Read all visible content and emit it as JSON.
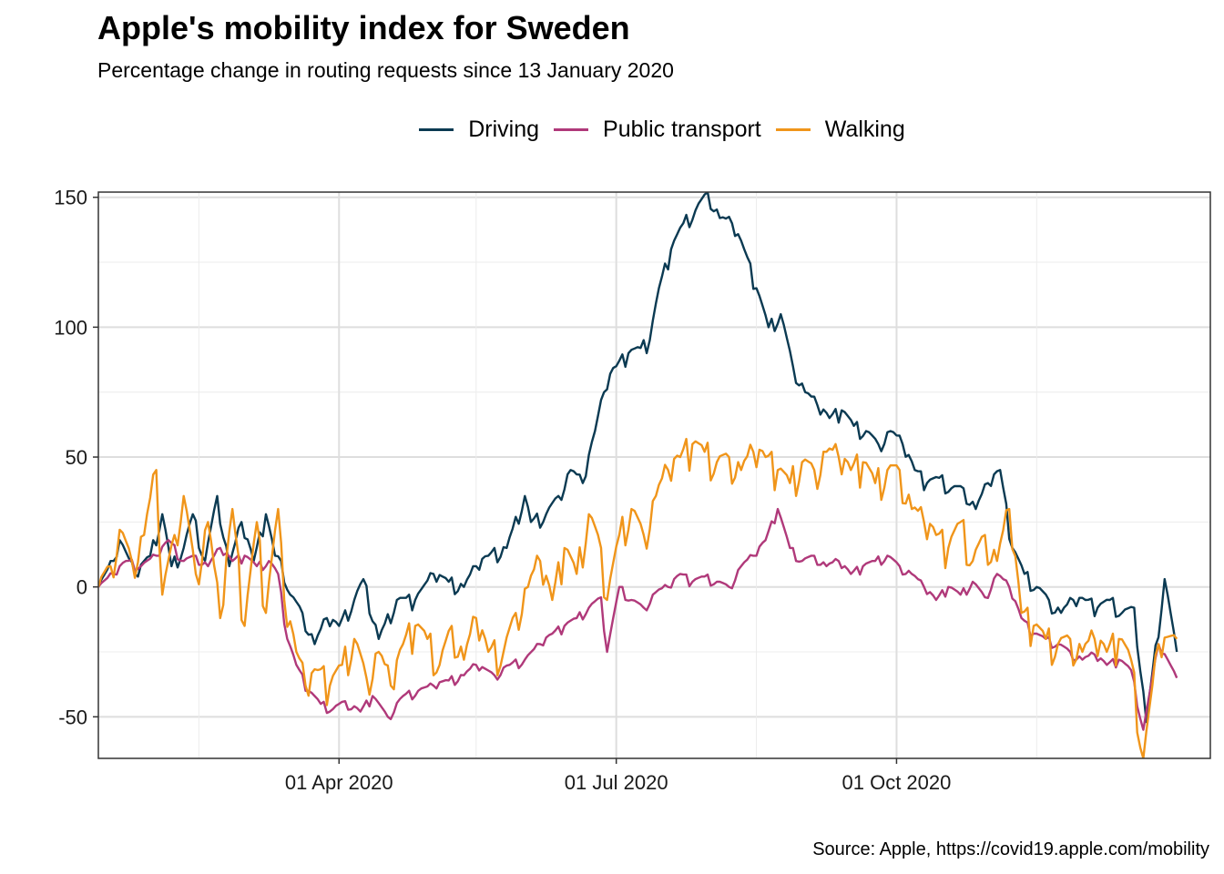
{
  "title": "Apple's mobility index for Sweden",
  "subtitle": "Percentage change in routing requests since 13 January 2020",
  "caption": "Source: Apple, https://covid19.apple.com/mobility",
  "chart_data": {
    "type": "line",
    "x_label_ticks": [
      "01 Apr 2020",
      "01 Jul 2020",
      "01 Oct 2020"
    ],
    "y_ticks": [
      -50,
      0,
      50,
      100,
      150
    ],
    "xlim": [
      "2020-01-13",
      "2021-01-12"
    ],
    "ylim": [
      -66,
      152
    ],
    "grid": true,
    "legend_position": "top",
    "series": [
      {
        "name": "Driving",
        "color": "#0b3a52",
        "points": [
          [
            "2020-01-13",
            0
          ],
          [
            "2020-01-18",
            10
          ],
          [
            "2020-01-20",
            18
          ],
          [
            "2020-01-25",
            5
          ],
          [
            "2020-01-30",
            12
          ],
          [
            "2020-02-03",
            28
          ],
          [
            "2020-02-06",
            8
          ],
          [
            "2020-02-10",
            15
          ],
          [
            "2020-02-13",
            28
          ],
          [
            "2020-02-17",
            10
          ],
          [
            "2020-02-21",
            35
          ],
          [
            "2020-02-25",
            8
          ],
          [
            "2020-02-29",
            25
          ],
          [
            "2020-03-04",
            10
          ],
          [
            "2020-03-08",
            28
          ],
          [
            "2020-03-11",
            12
          ],
          [
            "2020-03-13",
            10
          ],
          [
            "2020-03-16",
            -3
          ],
          [
            "2020-03-20",
            -10
          ],
          [
            "2020-03-24",
            -22
          ],
          [
            "2020-03-28",
            -12
          ],
          [
            "2020-04-01",
            -15
          ],
          [
            "2020-04-06",
            -5
          ],
          [
            "2020-04-09",
            3
          ],
          [
            "2020-04-14",
            -20
          ],
          [
            "2020-04-20",
            -5
          ],
          [
            "2020-04-26",
            -5
          ],
          [
            "2020-05-02",
            5
          ],
          [
            "2020-05-07",
            2
          ],
          [
            "2020-05-12",
            0
          ],
          [
            "2020-05-16",
            8
          ],
          [
            "2020-05-20",
            12
          ],
          [
            "2020-05-26",
            15
          ],
          [
            "2020-06-01",
            35
          ],
          [
            "2020-06-03",
            25
          ],
          [
            "2020-06-08",
            28
          ],
          [
            "2020-06-12",
            35
          ],
          [
            "2020-06-16",
            45
          ],
          [
            "2020-06-20",
            40
          ],
          [
            "2020-06-24",
            60
          ],
          [
            "2020-06-27",
            75
          ],
          [
            "2020-06-29",
            82
          ],
          [
            "2020-07-01",
            85
          ],
          [
            "2020-07-05",
            90
          ],
          [
            "2020-07-09",
            92
          ],
          [
            "2020-07-12",
            95
          ],
          [
            "2020-07-15",
            115
          ],
          [
            "2020-07-19",
            130
          ],
          [
            "2020-07-23",
            140
          ],
          [
            "2020-07-27",
            145
          ],
          [
            "2020-07-31",
            152
          ],
          [
            "2020-08-04",
            142
          ],
          [
            "2020-08-08",
            140
          ],
          [
            "2020-08-12",
            130
          ],
          [
            "2020-08-16",
            115
          ],
          [
            "2020-08-20",
            100
          ],
          [
            "2020-08-24",
            105
          ],
          [
            "2020-08-28",
            85
          ],
          [
            "2020-09-01",
            75
          ],
          [
            "2020-09-05",
            70
          ],
          [
            "2020-09-09",
            65
          ],
          [
            "2020-09-13",
            68
          ],
          [
            "2020-09-17",
            62
          ],
          [
            "2020-09-21",
            60
          ],
          [
            "2020-09-25",
            55
          ],
          [
            "2020-09-29",
            60
          ],
          [
            "2020-10-03",
            55
          ],
          [
            "2020-10-07",
            45
          ],
          [
            "2020-10-11",
            40
          ],
          [
            "2020-10-15",
            42
          ],
          [
            "2020-10-19",
            38
          ],
          [
            "2020-10-23",
            38
          ],
          [
            "2020-10-27",
            30
          ],
          [
            "2020-10-31",
            40
          ],
          [
            "2020-11-04",
            45
          ],
          [
            "2020-11-08",
            15
          ],
          [
            "2020-11-12",
            5
          ],
          [
            "2020-11-16",
            0
          ],
          [
            "2020-11-20",
            -5
          ],
          [
            "2020-11-24",
            -10
          ],
          [
            "2020-11-28",
            -5
          ],
          [
            "2020-12-02",
            -5
          ],
          [
            "2020-12-06",
            -8
          ],
          [
            "2020-12-10",
            -5
          ],
          [
            "2020-12-14",
            -10
          ],
          [
            "2020-12-18",
            -8
          ],
          [
            "2020-12-22",
            -52
          ],
          [
            "2020-12-28",
            3
          ],
          [
            "2021-01-01",
            -25
          ]
        ]
      },
      {
        "name": "Public transport",
        "color": "#b0397a",
        "points": [
          [
            "2020-01-13",
            0
          ],
          [
            "2020-01-18",
            5
          ],
          [
            "2020-01-22",
            10
          ],
          [
            "2020-01-27",
            8
          ],
          [
            "2020-02-01",
            12
          ],
          [
            "2020-02-05",
            18
          ],
          [
            "2020-02-10",
            10
          ],
          [
            "2020-02-14",
            12
          ],
          [
            "2020-02-18",
            8
          ],
          [
            "2020-02-22",
            15
          ],
          [
            "2020-02-26",
            10
          ],
          [
            "2020-03-01",
            12
          ],
          [
            "2020-03-05",
            8
          ],
          [
            "2020-03-09",
            10
          ],
          [
            "2020-03-12",
            5
          ],
          [
            "2020-03-15",
            -20
          ],
          [
            "2020-03-18",
            -30
          ],
          [
            "2020-03-22",
            -40
          ],
          [
            "2020-03-26",
            -45
          ],
          [
            "2020-03-30",
            -47
          ],
          [
            "2020-04-03",
            -44
          ],
          [
            "2020-04-08",
            -48
          ],
          [
            "2020-04-12",
            -42
          ],
          [
            "2020-04-17",
            -50
          ],
          [
            "2020-04-22",
            -42
          ],
          [
            "2020-04-27",
            -40
          ],
          [
            "2020-05-02",
            -38
          ],
          [
            "2020-05-07",
            -36
          ],
          [
            "2020-05-12",
            -34
          ],
          [
            "2020-05-16",
            -30
          ],
          [
            "2020-05-22",
            -34
          ],
          [
            "2020-05-27",
            -30
          ],
          [
            "2020-06-01",
            -28
          ],
          [
            "2020-06-06",
            -22
          ],
          [
            "2020-06-10",
            -18
          ],
          [
            "2020-06-14",
            -15
          ],
          [
            "2020-06-18",
            -12
          ],
          [
            "2020-06-22",
            -8
          ],
          [
            "2020-06-26",
            -4
          ],
          [
            "2020-06-28",
            -25
          ],
          [
            "2020-07-02",
            0
          ],
          [
            "2020-07-06",
            -5
          ],
          [
            "2020-07-10",
            -8
          ],
          [
            "2020-07-14",
            -2
          ],
          [
            "2020-07-18",
            0
          ],
          [
            "2020-07-22",
            5
          ],
          [
            "2020-07-26",
            2
          ],
          [
            "2020-07-30",
            4
          ],
          [
            "2020-08-03",
            2
          ],
          [
            "2020-08-07",
            0
          ],
          [
            "2020-08-11",
            8
          ],
          [
            "2020-08-15",
            12
          ],
          [
            "2020-08-19",
            18
          ],
          [
            "2020-08-23",
            30
          ],
          [
            "2020-08-27",
            15
          ],
          [
            "2020-08-31",
            10
          ],
          [
            "2020-09-04",
            12
          ],
          [
            "2020-09-08",
            8
          ],
          [
            "2020-09-12",
            10
          ],
          [
            "2020-09-16",
            5
          ],
          [
            "2020-09-20",
            8
          ],
          [
            "2020-09-24",
            10
          ],
          [
            "2020-09-28",
            12
          ],
          [
            "2020-10-02",
            8
          ],
          [
            "2020-10-06",
            5
          ],
          [
            "2020-10-10",
            0
          ],
          [
            "2020-10-14",
            -5
          ],
          [
            "2020-10-18",
            0
          ],
          [
            "2020-10-22",
            -3
          ],
          [
            "2020-10-26",
            2
          ],
          [
            "2020-10-30",
            -4
          ],
          [
            "2020-11-03",
            5
          ],
          [
            "2020-11-07",
            0
          ],
          [
            "2020-11-11",
            -12
          ],
          [
            "2020-11-15",
            -18
          ],
          [
            "2020-11-19",
            -20
          ],
          [
            "2020-11-23",
            -22
          ],
          [
            "2020-11-27",
            -25
          ],
          [
            "2020-12-01",
            -28
          ],
          [
            "2020-12-05",
            -26
          ],
          [
            "2020-12-09",
            -30
          ],
          [
            "2020-12-13",
            -28
          ],
          [
            "2020-12-17",
            -32
          ],
          [
            "2020-12-21",
            -55
          ],
          [
            "2020-12-26",
            -22
          ],
          [
            "2021-01-01",
            -35
          ]
        ]
      },
      {
        "name": "Walking",
        "color": "#f0951a",
        "points": [
          [
            "2020-01-13",
            0
          ],
          [
            "2020-01-17",
            8
          ],
          [
            "2020-01-20",
            22
          ],
          [
            "2020-01-24",
            10
          ],
          [
            "2020-01-28",
            20
          ],
          [
            "2020-02-01",
            45
          ],
          [
            "2020-02-03",
            -3
          ],
          [
            "2020-02-07",
            20
          ],
          [
            "2020-02-10",
            35
          ],
          [
            "2020-02-14",
            5
          ],
          [
            "2020-02-18",
            25
          ],
          [
            "2020-02-22",
            -12
          ],
          [
            "2020-02-26",
            30
          ],
          [
            "2020-03-01",
            -15
          ],
          [
            "2020-03-05",
            25
          ],
          [
            "2020-03-08",
            -10
          ],
          [
            "2020-03-12",
            30
          ],
          [
            "2020-03-14",
            -5
          ],
          [
            "2020-03-18",
            -25
          ],
          [
            "2020-03-21",
            -38
          ],
          [
            "2020-03-25",
            -32
          ],
          [
            "2020-03-29",
            -38
          ],
          [
            "2020-04-02",
            -30
          ],
          [
            "2020-04-06",
            -20
          ],
          [
            "2020-04-10",
            -35
          ],
          [
            "2020-04-14",
            -25
          ],
          [
            "2020-04-18",
            -38
          ],
          [
            "2020-04-22",
            -22
          ],
          [
            "2020-04-26",
            -15
          ],
          [
            "2020-04-30",
            -20
          ],
          [
            "2020-05-04",
            -30
          ],
          [
            "2020-05-08",
            -15
          ],
          [
            "2020-05-12",
            -28
          ],
          [
            "2020-05-16",
            -12
          ],
          [
            "2020-05-20",
            -25
          ],
          [
            "2020-05-25",
            -25
          ],
          [
            "2020-05-29",
            -10
          ],
          [
            "2020-06-02",
            0
          ],
          [
            "2020-06-06",
            10
          ],
          [
            "2020-06-10",
            -5
          ],
          [
            "2020-06-14",
            15
          ],
          [
            "2020-06-18",
            5
          ],
          [
            "2020-06-22",
            28
          ],
          [
            "2020-06-26",
            15
          ],
          [
            "2020-06-28",
            -5
          ],
          [
            "2020-07-02",
            20
          ],
          [
            "2020-07-06",
            30
          ],
          [
            "2020-07-10",
            20
          ],
          [
            "2020-07-14",
            35
          ],
          [
            "2020-07-18",
            45
          ],
          [
            "2020-07-22",
            50
          ],
          [
            "2020-07-26",
            55
          ],
          [
            "2020-07-30",
            52
          ],
          [
            "2020-08-03",
            48
          ],
          [
            "2020-08-07",
            50
          ],
          [
            "2020-08-11",
            45
          ],
          [
            "2020-08-15",
            52
          ],
          [
            "2020-08-19",
            50
          ],
          [
            "2020-08-23",
            45
          ],
          [
            "2020-08-27",
            40
          ],
          [
            "2020-08-31",
            48
          ],
          [
            "2020-09-04",
            45
          ],
          [
            "2020-09-08",
            52
          ],
          [
            "2020-09-12",
            50
          ],
          [
            "2020-09-16",
            45
          ],
          [
            "2020-09-20",
            48
          ],
          [
            "2020-09-24",
            40
          ],
          [
            "2020-09-28",
            45
          ],
          [
            "2020-10-02",
            45
          ],
          [
            "2020-10-06",
            30
          ],
          [
            "2020-10-10",
            25
          ],
          [
            "2020-10-14",
            20
          ],
          [
            "2020-10-18",
            15
          ],
          [
            "2020-10-22",
            25
          ],
          [
            "2020-10-26",
            10
          ],
          [
            "2020-10-30",
            20
          ],
          [
            "2020-11-03",
            10
          ],
          [
            "2020-11-07",
            30
          ],
          [
            "2020-11-11",
            -10
          ],
          [
            "2020-11-15",
            -15
          ],
          [
            "2020-11-19",
            -20
          ],
          [
            "2020-11-23",
            -22
          ],
          [
            "2020-11-27",
            -20
          ],
          [
            "2020-12-01",
            -25
          ],
          [
            "2020-12-05",
            -20
          ],
          [
            "2020-12-09",
            -25
          ],
          [
            "2020-12-13",
            -20
          ],
          [
            "2020-12-17",
            -28
          ],
          [
            "2020-12-21",
            -66
          ],
          [
            "2020-12-26",
            -22
          ],
          [
            "2021-01-01",
            -20
          ]
        ]
      }
    ]
  }
}
